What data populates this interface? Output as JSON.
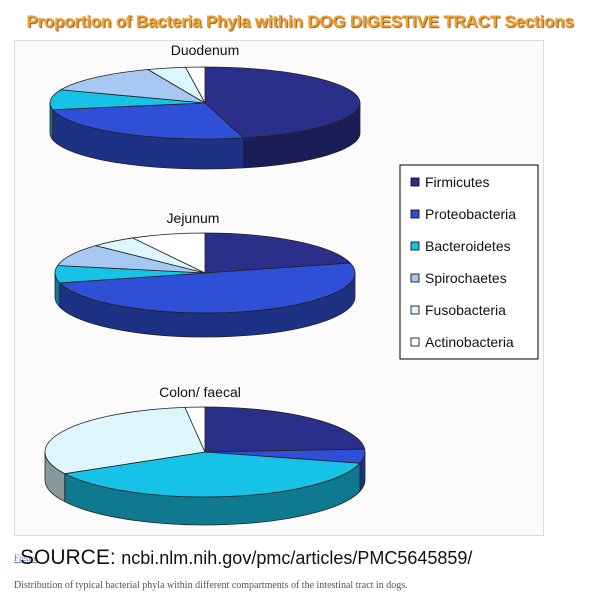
{
  "header": {
    "title": "Proportion of Bacteria Phyla within DOG DIGESTIVE TRACT Sections"
  },
  "colors": {
    "Firmicutes": "#2a2f8a",
    "Proteobacteria": "#2f4fd6",
    "Bacteroidetes": "#16c3e6",
    "Spirochaetes": "#a6c8f2",
    "Fusobacteria": "#dcf6fb",
    "Actinobacteria": "#ffffff"
  },
  "chart_data": [
    {
      "type": "pie",
      "title": "Duodenum",
      "categories": [
        "Firmicutes",
        "Proteobacteria",
        "Bacteroidetes",
        "Spirochaetes",
        "Fusobacteria",
        "Actinobacteria"
      ],
      "values": [
        46,
        26,
        9,
        13,
        4,
        2
      ],
      "legend": "right"
    },
    {
      "type": "pie",
      "title": "Jejunum",
      "categories": [
        "Firmicutes",
        "Proteobacteria",
        "Bacteroidetes",
        "Spirochaetes",
        "Fusobacteria",
        "Actinobacteria"
      ],
      "values": [
        21,
        50,
        7,
        9,
        5,
        8
      ],
      "legend": "right"
    },
    {
      "type": "pie",
      "title": "Colon/ faecal",
      "categories": [
        "Firmicutes",
        "Proteobacteria",
        "Bacteroidetes",
        "Spirochaetes",
        "Fusobacteria",
        "Actinobacteria"
      ],
      "values": [
        24,
        5,
        38,
        0,
        31,
        2
      ],
      "legend": "right"
    }
  ],
  "footer": {
    "link_text": "Figure",
    "source_label": "SOURCE:",
    "source_url": "ncbi.nlm.nih.gov/pmc/articles/PMC5645859/",
    "caption": "Distribution of typical bacterial phyla within different compartments of the intestinal tract in dogs."
  }
}
